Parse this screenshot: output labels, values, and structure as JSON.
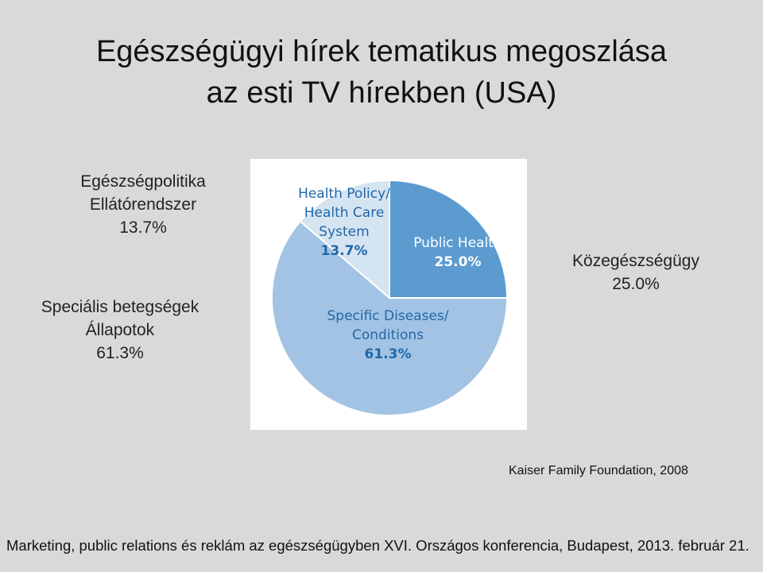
{
  "title": {
    "line1": "Egészségügyi hírek tematikus megoszlása",
    "line2": "az esti TV hírekben  (USA)"
  },
  "labels_hu": {
    "policy": [
      "Egészségpolitika",
      "Ellátórendszer",
      "13.7%"
    ],
    "specific": [
      "Speciális betegségek",
      "Állapotok",
      "61.3%"
    ],
    "public": [
      "Közegészségügy",
      "25.0%"
    ]
  },
  "chart_data": {
    "type": "pie",
    "slices": [
      {
        "name_lines": [
          "Public Health"
        ],
        "label": "25.0%",
        "value": 25.0,
        "color": "#5b9bd0",
        "text_color": "#ffffff"
      },
      {
        "name_lines": [
          "Specific Diseases/",
          "Conditions"
        ],
        "label": "61.3%",
        "value": 61.3,
        "color": "#a3c3e4",
        "text_color": "#1f67a8"
      },
      {
        "name_lines": [
          "Health Policy/",
          "Health Care",
          "System"
        ],
        "label": "13.7%",
        "value": 13.7,
        "color": "#d5e4f1",
        "text_color": "#1f67a8"
      }
    ]
  },
  "source": "Kaiser Family Foundation, 2008",
  "footer": "Marketing, public relations és reklám  az  egészségügyben XVI. Országos konferencia, Budapest, 2013. február 21."
}
